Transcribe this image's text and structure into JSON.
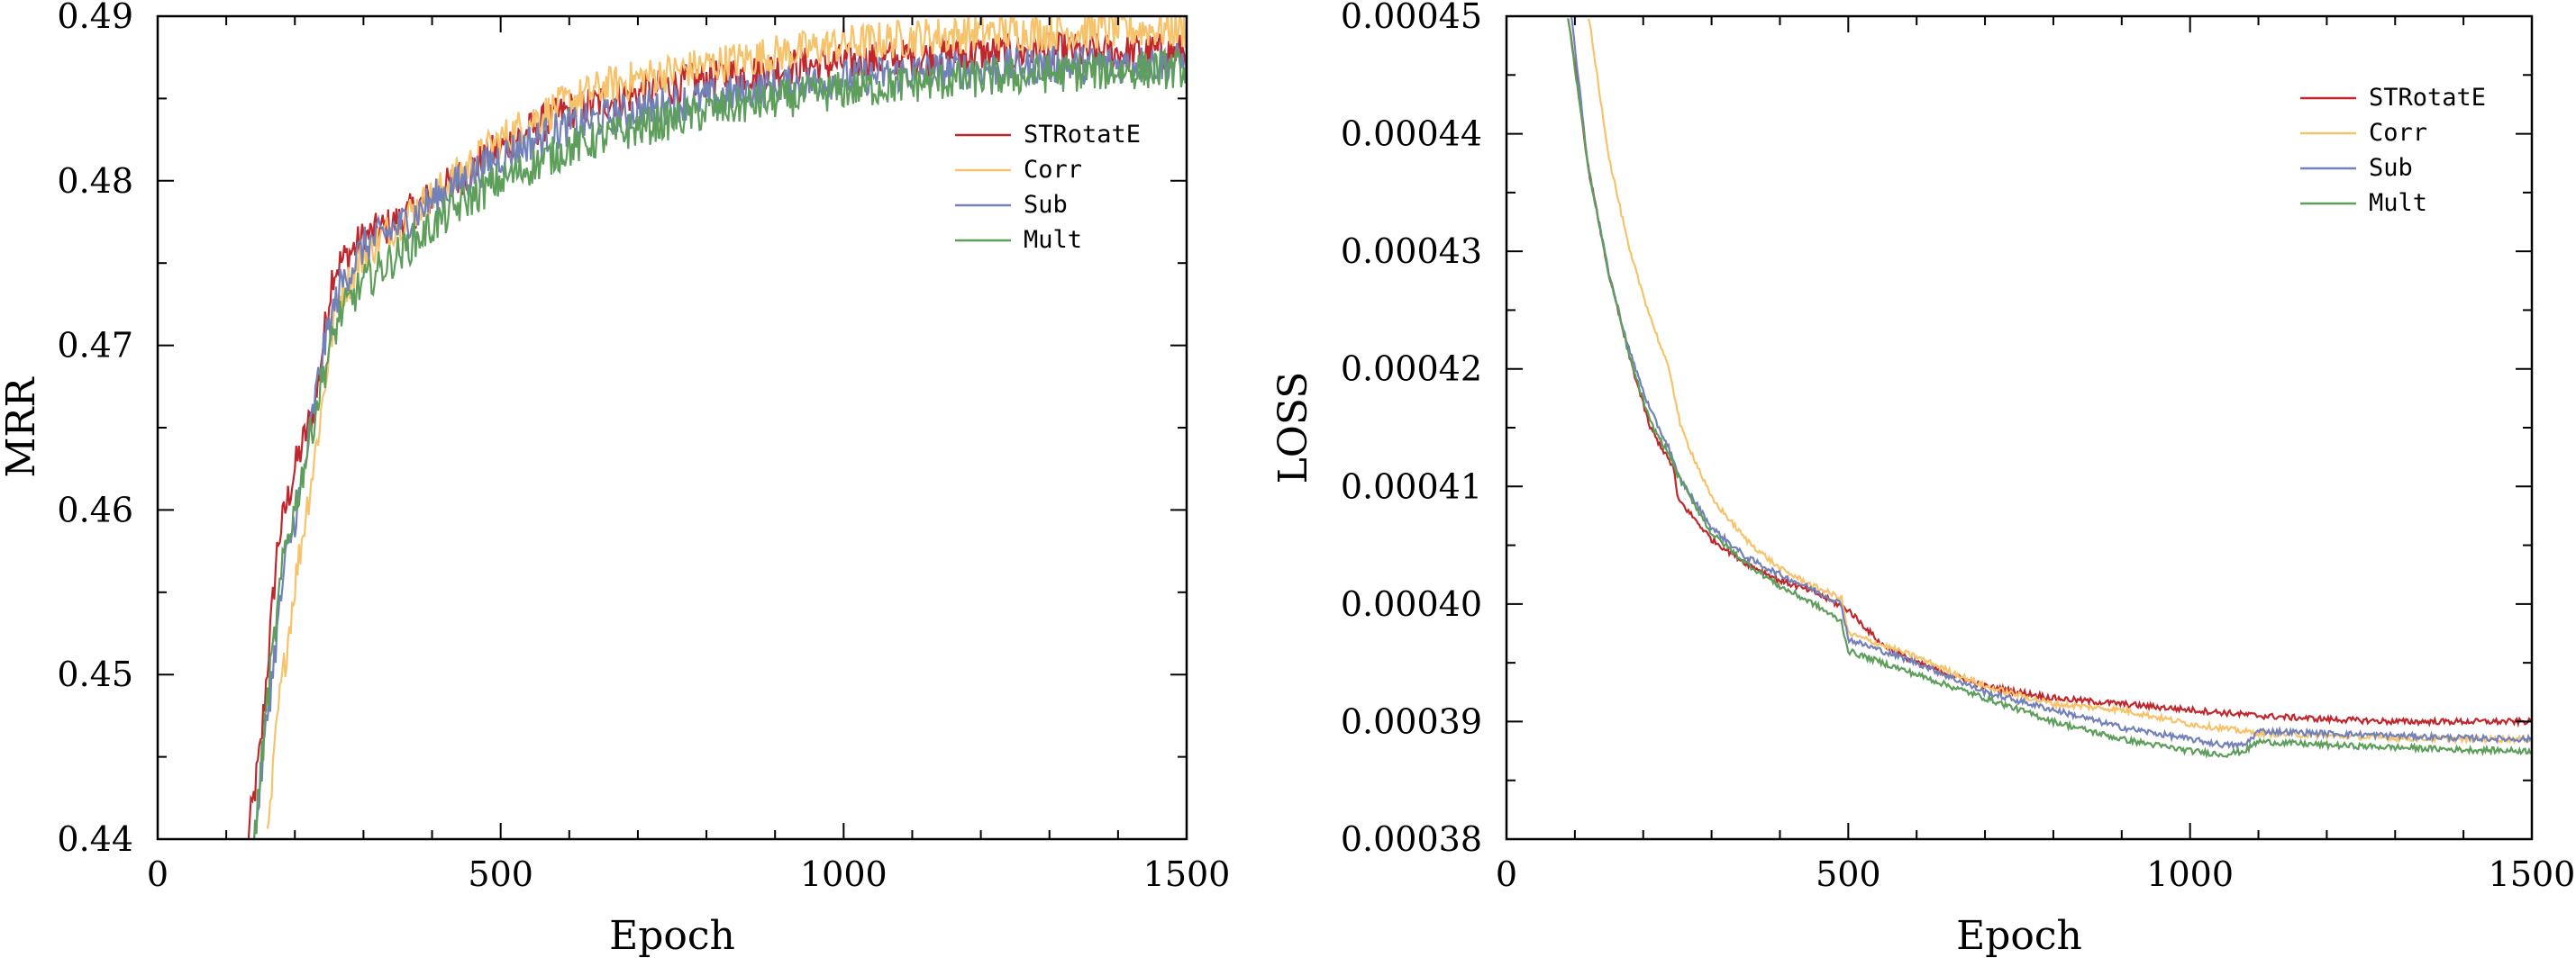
{
  "chart_data": [
    {
      "type": "line",
      "xlabel": "Epoch",
      "ylabel": "MRR",
      "xlim": [
        0,
        1500
      ],
      "ylim": [
        0.44,
        0.49
      ],
      "x_ticks": [
        0,
        500,
        1000,
        1500
      ],
      "x_tick_labels": [
        "0",
        "500",
        "1000",
        "1500"
      ],
      "y_ticks": [
        0.44,
        0.45,
        0.46,
        0.47,
        0.48,
        0.49
      ],
      "y_tick_labels": [
        "0.44",
        "0.45",
        "0.46",
        "0.47",
        "0.48",
        "0.49"
      ],
      "grid": false,
      "legend_position": "top-right",
      "noise": 0.0012,
      "series": [
        {
          "name": "STRotatE",
          "color": "#c0272d",
          "x": [
            130,
            150,
            175,
            200,
            230,
            255,
            300,
            350,
            400,
            450,
            500,
            550,
            600,
            650,
            700,
            800,
            900,
            1000,
            1100,
            1200,
            1300,
            1400,
            1500
          ],
          "y": [
            0.4395,
            0.4455,
            0.458,
            0.4625,
            0.4665,
            0.4745,
            0.4765,
            0.4775,
            0.479,
            0.4805,
            0.482,
            0.4832,
            0.4843,
            0.4848,
            0.4853,
            0.4862,
            0.4868,
            0.4872,
            0.4875,
            0.4877,
            0.4878,
            0.4878,
            0.4878
          ]
        },
        {
          "name": "Corr",
          "color": "#f6c36b",
          "x": [
            160,
            175,
            200,
            230,
            260,
            300,
            350,
            400,
            450,
            500,
            550,
            600,
            650,
            700,
            800,
            900,
            1000,
            1100,
            1200,
            1300,
            1400,
            1500
          ],
          "y": [
            0.4395,
            0.4475,
            0.4555,
            0.4635,
            0.4725,
            0.4755,
            0.4775,
            0.479,
            0.4808,
            0.4825,
            0.4838,
            0.4848,
            0.4857,
            0.4862,
            0.487,
            0.4877,
            0.4883,
            0.4887,
            0.489,
            0.4891,
            0.4892,
            0.4892
          ]
        },
        {
          "name": "Sub",
          "color": "#7381b9",
          "x": [
            140,
            160,
            185,
            210,
            240,
            265,
            300,
            350,
            400,
            450,
            500,
            550,
            600,
            650,
            700,
            800,
            900,
            1000,
            1100,
            1200,
            1300,
            1400,
            1500
          ],
          "y": [
            0.4395,
            0.4475,
            0.4565,
            0.4615,
            0.4695,
            0.4735,
            0.476,
            0.4772,
            0.4788,
            0.4802,
            0.4815,
            0.4825,
            0.4833,
            0.4838,
            0.4843,
            0.485,
            0.4857,
            0.4862,
            0.4866,
            0.4868,
            0.487,
            0.4871,
            0.4872
          ]
        },
        {
          "name": "Mult",
          "color": "#5d9e5a",
          "x": [
            140,
            160,
            185,
            210,
            240,
            265,
            300,
            350,
            400,
            450,
            500,
            550,
            600,
            650,
            700,
            800,
            900,
            1000,
            1100,
            1200,
            1300,
            1400,
            1500
          ],
          "y": [
            0.4395,
            0.4485,
            0.4575,
            0.462,
            0.468,
            0.4718,
            0.4738,
            0.4755,
            0.4772,
            0.4788,
            0.48,
            0.481,
            0.482,
            0.4826,
            0.4832,
            0.4842,
            0.4849,
            0.4855,
            0.4859,
            0.4862,
            0.4865,
            0.4867,
            0.4868
          ]
        }
      ]
    },
    {
      "type": "line",
      "xlabel": "Epoch",
      "ylabel": "LOSS",
      "xlim": [
        0,
        1500
      ],
      "ylim": [
        0.00038,
        0.00045
      ],
      "x_ticks": [
        0,
        500,
        1000,
        1500
      ],
      "x_tick_labels": [
        "0",
        "500",
        "1000",
        "1500"
      ],
      "y_ticks": [
        0.00038,
        0.00039,
        0.0004,
        0.00041,
        0.00042,
        0.00043,
        0.00044,
        0.00045
      ],
      "y_tick_labels": [
        "0.00038",
        "0.00039",
        "0.00040",
        "0.00041",
        "0.00042",
        "0.00043",
        "0.00044",
        "0.00045"
      ],
      "grid": false,
      "legend_position": "top-right",
      "noise": 2.5e-07,
      "series": [
        {
          "name": "STRotatE",
          "color": "#c0272d",
          "x": [
            90,
            120,
            150,
            180,
            210,
            245,
            250,
            300,
            350,
            400,
            450,
            500,
            550,
            600,
            700,
            800,
            900,
            1000,
            1100,
            1200,
            1300,
            1400,
            1500
          ],
          "y": [
            0.00045,
            0.000437,
            0.000428,
            0.000421,
            0.000415,
            0.0004115,
            0.000409,
            0.0004055,
            0.0004035,
            0.000402,
            0.000401,
            0.0003995,
            0.0003965,
            0.000395,
            0.000393,
            0.000392,
            0.0003915,
            0.000391,
            0.0003905,
            0.0003902,
            0.00039,
            0.00039,
            0.00039
          ]
        },
        {
          "name": "Corr",
          "color": "#f6c36b",
          "x": [
            120,
            150,
            180,
            210,
            240,
            255,
            300,
            350,
            400,
            450,
            490,
            500,
            550,
            600,
            700,
            800,
            900,
            1000,
            1100,
            1200,
            1300,
            1400,
            1500
          ],
          "y": [
            0.00045,
            0.000438,
            0.00043,
            0.0004245,
            0.0004195,
            0.000415,
            0.000409,
            0.0004055,
            0.000403,
            0.0004015,
            0.0004005,
            0.0003975,
            0.0003965,
            0.0003955,
            0.000393,
            0.0003915,
            0.000391,
            0.0003898,
            0.000389,
            0.0003888,
            0.0003886,
            0.0003885,
            0.0003885
          ]
        },
        {
          "name": "Sub",
          "color": "#7381b9",
          "x": [
            95,
            120,
            150,
            180,
            210,
            240,
            250,
            300,
            350,
            400,
            450,
            490,
            500,
            550,
            600,
            700,
            800,
            900,
            1000,
            1050,
            1080,
            1100,
            1200,
            1300,
            1400,
            1500
          ],
          "y": [
            0.00045,
            0.000437,
            0.000428,
            0.0004215,
            0.0004165,
            0.000413,
            0.000411,
            0.0004065,
            0.000404,
            0.0004025,
            0.0004012,
            0.0004,
            0.000397,
            0.000396,
            0.000395,
            0.0003925,
            0.000391,
            0.0003895,
            0.0003885,
            0.000388,
            0.000388,
            0.0003892,
            0.000389,
            0.0003888,
            0.0003886,
            0.0003885
          ]
        },
        {
          "name": "Mult",
          "color": "#5d9e5a",
          "x": [
            90,
            120,
            150,
            180,
            210,
            240,
            250,
            300,
            350,
            400,
            450,
            490,
            500,
            550,
            600,
            700,
            800,
            900,
            1000,
            1050,
            1080,
            1100,
            1200,
            1300,
            1400,
            1500
          ],
          "y": [
            0.00045,
            0.000437,
            0.000428,
            0.000421,
            0.0004155,
            0.0004125,
            0.000411,
            0.000406,
            0.0004035,
            0.0004015,
            0.0004,
            0.0003985,
            0.000396,
            0.000395,
            0.000394,
            0.000392,
            0.00039,
            0.0003885,
            0.0003875,
            0.0003872,
            0.0003875,
            0.0003883,
            0.000388,
            0.0003878,
            0.0003876,
            0.0003875
          ]
        }
      ]
    }
  ]
}
